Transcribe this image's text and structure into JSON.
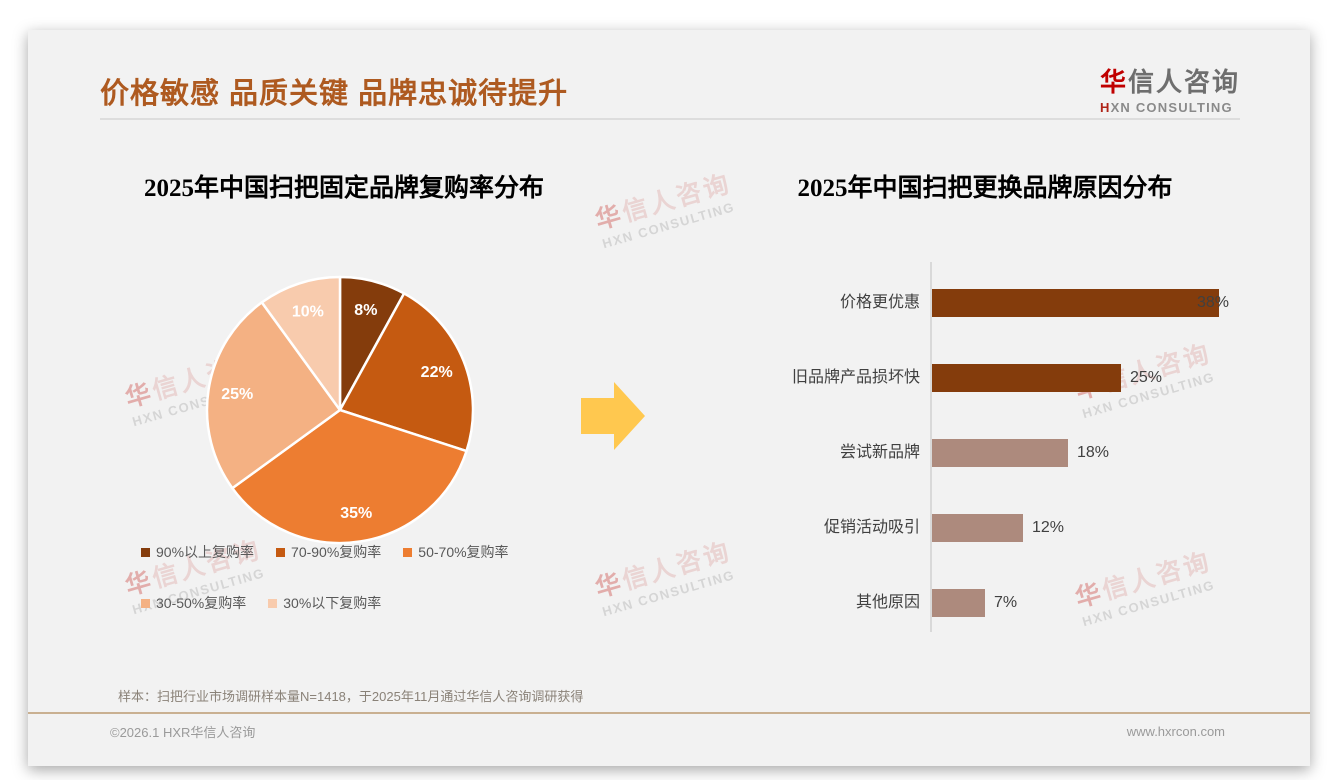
{
  "page": {
    "main_title": "价格敏感 品质关键 品牌忠诚待提升",
    "logo": {
      "zh_first": "华",
      "zh_rest": "信人咨询",
      "en_first": "H",
      "en_rest": "XN CONSULTING"
    },
    "watermark": {
      "line1": "华信人咨询",
      "line2": "HXN CONSULTING"
    },
    "footnote": "样本：扫把行业市场调研样本量N=1418，于2025年11月通过华信人咨询调研获得",
    "footer_left": "©2026.1 HXR华信人咨询",
    "footer_right": "www.hxrcon.com"
  },
  "decorations": {
    "arrow_color": "#FFC84F"
  },
  "chart_data": [
    {
      "type": "pie",
      "title": "2025年中国扫把固定品牌复购率分布",
      "labels": [
        "90%以上复购率",
        "70-90%复购率",
        "50-70%复购率",
        "30-50%复购率",
        "30%以下复购率"
      ],
      "values": [
        8,
        22,
        35,
        25,
        10
      ],
      "data_labels": [
        "8%",
        "22%",
        "35%",
        "25%",
        "10%"
      ],
      "colors": [
        "#843C0C",
        "#C55A11",
        "#ED7D31",
        "#F4B183",
        "#F8CBAD"
      ],
      "start_angle_deg": 0,
      "direction": "clockwise",
      "legend_position": "bottom",
      "legend_rows": [
        [
          0,
          1,
          2
        ],
        [
          3,
          4
        ]
      ]
    },
    {
      "type": "bar",
      "orientation": "horizontal",
      "title": "2025年中国扫把更换品牌原因分布",
      "categories": [
        "价格更优惠",
        "旧品牌产品损坏快",
        "尝试新品牌",
        "促销活动吸引",
        "其他原因"
      ],
      "values": [
        38,
        25,
        18,
        12,
        7
      ],
      "value_labels": [
        "38%",
        "25%",
        "18%",
        "12%",
        "7%"
      ],
      "colors": [
        "#843C0C",
        "#843C0C",
        "#AD8A7D",
        "#AD8A7D",
        "#AD8A7D"
      ],
      "xlim": [
        0,
        40
      ],
      "grid": false,
      "legend_position": "none"
    }
  ]
}
